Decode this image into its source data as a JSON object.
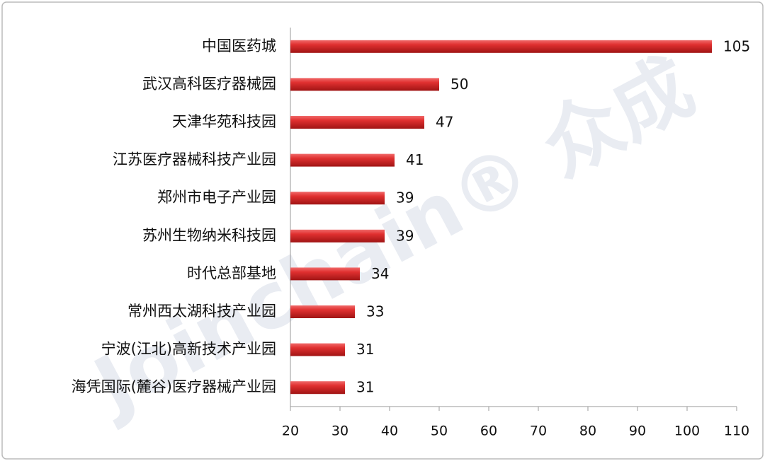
{
  "chart_data": {
    "type": "bar",
    "orientation": "horizontal",
    "watermark": "Joinchain® 众成",
    "categories": [
      "中国医药城",
      "武汉高科医疗器械园",
      "天津华苑科技园",
      "江苏医疗器械科技产业园",
      "郑州市电子产业园",
      "苏州生物纳米科技园",
      "时代总部基地",
      "常州西太湖科技产业园",
      "宁波(江北)高新技术产业园",
      "海凭国际(麓谷)医疗器械产业园"
    ],
    "values": [
      105,
      50,
      47,
      41,
      39,
      39,
      34,
      33,
      31,
      31
    ],
    "color": "#d42a2a",
    "xlim": [
      20,
      110
    ],
    "xticks": [
      20,
      30,
      40,
      50,
      60,
      70,
      80,
      90,
      100,
      110
    ],
    "grid": false
  }
}
